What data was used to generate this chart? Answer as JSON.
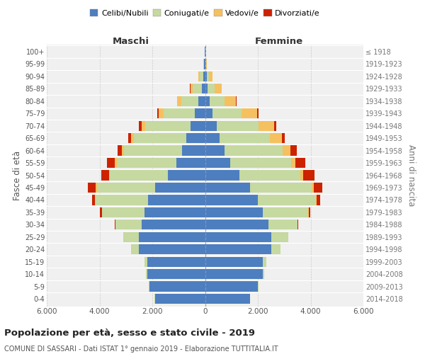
{
  "age_groups": [
    "0-4",
    "5-9",
    "10-14",
    "15-19",
    "20-24",
    "25-29",
    "30-34",
    "35-39",
    "40-44",
    "45-49",
    "50-54",
    "55-59",
    "60-64",
    "65-69",
    "70-74",
    "75-79",
    "80-84",
    "85-89",
    "90-94",
    "95-99",
    "100+"
  ],
  "birth_years": [
    "2014-2018",
    "2009-2013",
    "2004-2008",
    "1999-2003",
    "1994-1998",
    "1989-1993",
    "1984-1988",
    "1979-1983",
    "1974-1978",
    "1969-1973",
    "1964-1968",
    "1959-1963",
    "1954-1958",
    "1949-1953",
    "1944-1948",
    "1939-1943",
    "1934-1938",
    "1929-1933",
    "1924-1928",
    "1919-1923",
    "≤ 1918"
  ],
  "male_celibe": [
    1900,
    2100,
    2200,
    2200,
    2500,
    2500,
    2400,
    2300,
    2150,
    1900,
    1400,
    1100,
    870,
    700,
    560,
    380,
    250,
    130,
    80,
    30,
    10
  ],
  "male_coniugato": [
    20,
    30,
    50,
    100,
    300,
    600,
    1000,
    1600,
    2000,
    2200,
    2200,
    2250,
    2200,
    2000,
    1700,
    1200,
    650,
    330,
    120,
    25,
    5
  ],
  "male_vedovo": [
    0,
    0,
    0,
    1,
    2,
    3,
    5,
    10,
    20,
    40,
    50,
    60,
    80,
    100,
    150,
    180,
    150,
    100,
    60,
    15,
    2
  ],
  "male_divorziato": [
    0,
    0,
    0,
    2,
    5,
    10,
    30,
    80,
    120,
    290,
    290,
    300,
    170,
    120,
    100,
    50,
    20,
    10,
    5,
    2,
    0
  ],
  "female_celibe": [
    1700,
    2000,
    2200,
    2200,
    2500,
    2500,
    2400,
    2200,
    2000,
    1700,
    1300,
    950,
    750,
    560,
    430,
    280,
    180,
    100,
    60,
    25,
    10
  ],
  "female_coniugata": [
    15,
    25,
    50,
    110,
    350,
    650,
    1100,
    1700,
    2200,
    2350,
    2300,
    2300,
    2200,
    1900,
    1600,
    1100,
    550,
    250,
    80,
    15,
    3
  ],
  "female_vedova": [
    0,
    0,
    0,
    1,
    3,
    5,
    10,
    20,
    40,
    80,
    120,
    180,
    280,
    450,
    600,
    600,
    450,
    280,
    130,
    30,
    3
  ],
  "female_divorziata": [
    0,
    0,
    0,
    1,
    3,
    8,
    20,
    60,
    130,
    300,
    420,
    380,
    250,
    120,
    80,
    40,
    15,
    10,
    5,
    2,
    0
  ],
  "colors": {
    "celibe": "#4d7ebf",
    "coniugato": "#c5d9a0",
    "vedovo": "#f5c060",
    "divorziato": "#cc2200"
  },
  "title": "Popolazione per età, sesso e stato civile - 2019",
  "subtitle": "COMUNE DI SASSARI - Dati ISTAT 1° gennaio 2019 - Elaborazione TUTTITALIA.IT",
  "xlabel_left": "Maschi",
  "xlabel_right": "Femmine",
  "ylabel_left": "Fasce di età",
  "ylabel_right": "Anni di nascita",
  "xlim": 6000,
  "bg_color": "#f0f0f0",
  "grid_color": "#cccccc"
}
